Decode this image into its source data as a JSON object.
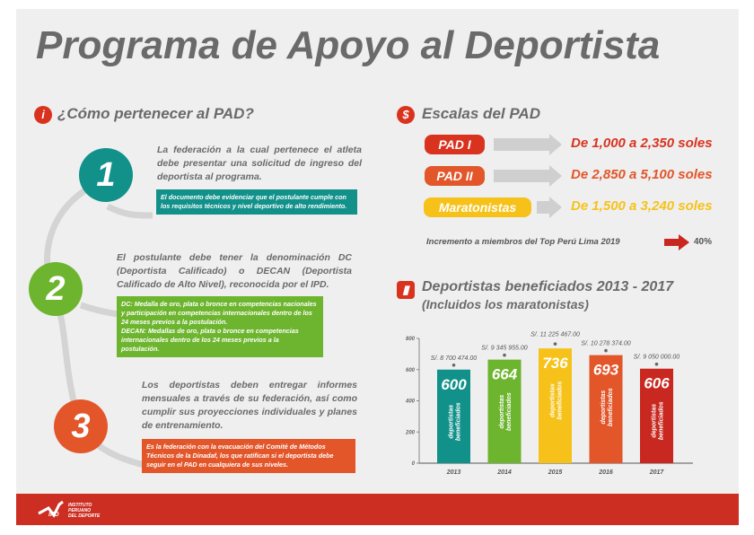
{
  "title": "Programa de Apoyo al Deportista",
  "left": {
    "heading": "¿Cómo pertenecer al PAD?",
    "steps": [
      {
        "number": "1",
        "color": "#11918a",
        "text": "La federación a la cual pertenece el atleta debe presentar una solicitud de ingreso del deportista al programa.",
        "note": "El documento debe evidenciar que el postulante cumple con los requisitos técnicos y nivel deportivo de alto rendimiento."
      },
      {
        "number": "2",
        "color": "#6db52e",
        "text": "El postulante debe tener la denominación DC (Deportista Calificado) o DECAN (Deportista Calificado de Alto Nivel), reconocida por el IPD.",
        "note": "DC: Medalla de oro, plata o bronce en competencias nacionales y participación en competencias internacionales dentro de los 24 meses previos a la postulación.",
        "note2": "DECAN: Medallas de oro, plata o bronce en competencias internacionales dentro de los 24 meses previos a la postulación."
      },
      {
        "number": "3",
        "color": "#e2562a",
        "text": "Los deportistas deben entregar informes mensuales a través de su federación, así como cumplir sus proyecciones individuales y planes de entrenamiento.",
        "note": "Es la federación con la evacuación del Comité de Métodos Técnicos de la Dinadaf, los que ratifican si el deportista debe seguir en el PAD en cualquiera de sus niveles."
      }
    ]
  },
  "scales": {
    "heading": "Escalas del PAD",
    "items": [
      {
        "label": "PAD I",
        "range": "De 1,000 a 2,350 soles",
        "color": "#d9331f"
      },
      {
        "label": "PAD II",
        "range": "De 2,850 a 5,100 soles",
        "color": "#e2562a"
      },
      {
        "label": "Maratonistas",
        "range": "De 1,500 a 3,240 soles",
        "color": "#f6c21a"
      }
    ],
    "increment_text": "Incremento a miembros del Top Perú Lima 2019",
    "increment_value": "40%"
  },
  "chart_heading": "Deportistas beneficiados 2013 - 2017",
  "chart_subheading": "(Incluidos los maratonistas)",
  "chart_data": {
    "type": "bar",
    "categories": [
      "2013",
      "2014",
      "2015",
      "2016",
      "2017"
    ],
    "values": [
      600,
      664,
      736,
      693,
      606
    ],
    "amounts": [
      "S/. 8 700 474.00",
      "S/. 9 345 955.00",
      "S/. 11 225 467.00",
      "S/. 10 278 374.00",
      "S/. 9 050 000.00"
    ],
    "bar_label": "deportistas beneficiados",
    "colors": [
      "#11918a",
      "#6db52e",
      "#f6c21a",
      "#e2562a",
      "#c8281f"
    ],
    "ylim": [
      0,
      800
    ],
    "yticks": [
      "0",
      "200",
      "400",
      "600",
      "800"
    ]
  },
  "footer": {
    "logo_text": "IPD INSTITUTO PERUANO DEL DEPORTE"
  }
}
